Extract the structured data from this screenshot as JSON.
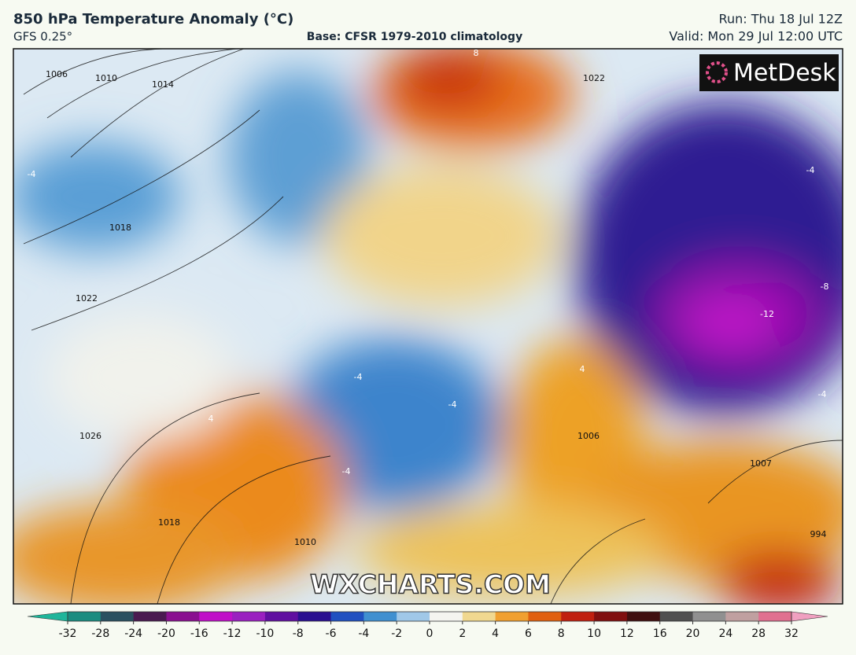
{
  "header": {
    "title": "850 hPa Temperature Anomaly (°C)",
    "model": "GFS 0.25°",
    "base": "Base: CFSR 1979-2010 climatology",
    "run": "Run: Thu 18 Jul 12Z",
    "valid": "Valid: Mon 29 Jul 12:00 UTC"
  },
  "logo": "MetDesk",
  "watermark": "WXCHARTS.COM",
  "contour_labels": [
    1006,
    1010,
    1014,
    1018,
    1022,
    1026,
    1018,
    1022,
    -4,
    -4,
    -8,
    -12,
    -4,
    4,
    -4,
    4,
    8,
    -4,
    -4,
    1006,
    1007,
    994,
    1010
  ],
  "colorbar": {
    "ticks": [
      -32,
      -28,
      -24,
      -20,
      -16,
      -12,
      -10,
      -8,
      -6,
      -4,
      -2,
      0,
      2,
      4,
      6,
      8,
      10,
      12,
      16,
      20,
      24,
      28,
      32
    ],
    "colors": [
      "#1fb59a",
      "#1a8c80",
      "#2a5060",
      "#4a1a50",
      "#8a1090",
      "#c010c8",
      "#9a20c0",
      "#6010a0",
      "#2a1090",
      "#2050c0",
      "#4090d0",
      "#a0c8e8",
      "#f4f4f0",
      "#f0d890",
      "#f0a030",
      "#e06010",
      "#c02010",
      "#801010",
      "#401010",
      "#505050",
      "#909090",
      "#c0a0a0",
      "#e07090",
      "#f0a0c0"
    ]
  }
}
